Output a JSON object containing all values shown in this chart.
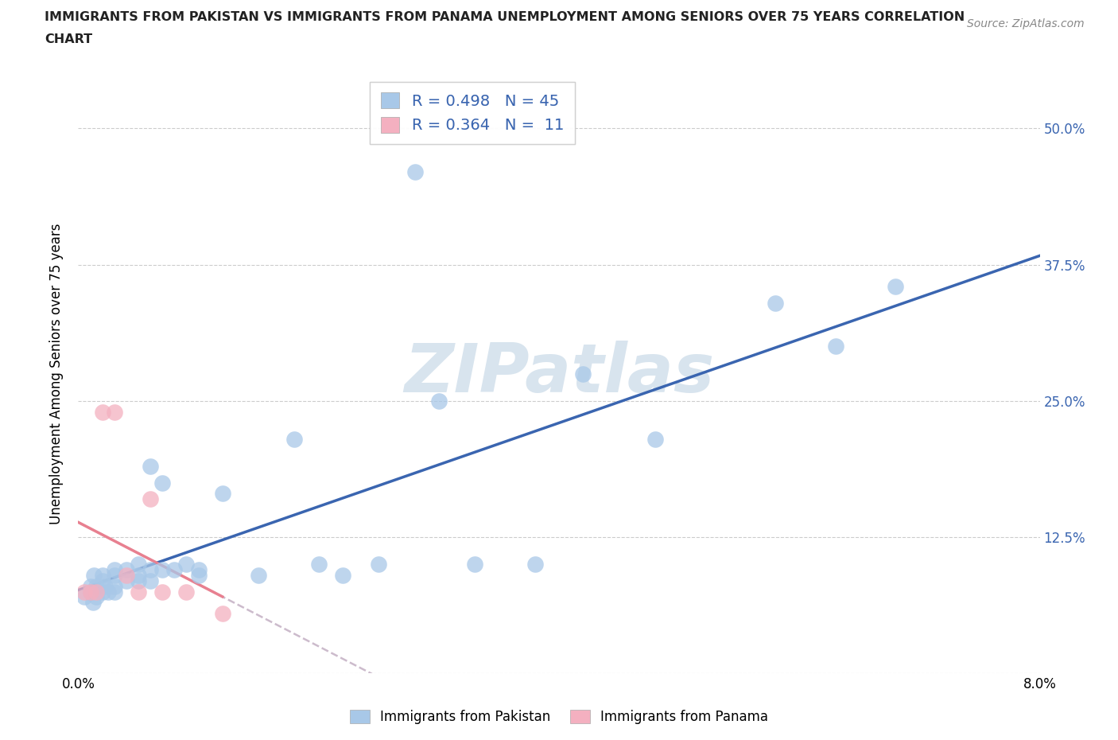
{
  "title_line1": "IMMIGRANTS FROM PAKISTAN VS IMMIGRANTS FROM PANAMA UNEMPLOYMENT AMONG SENIORS OVER 75 YEARS CORRELATION",
  "title_line2": "CHART",
  "source": "Source: ZipAtlas.com",
  "ylabel": "Unemployment Among Seniors over 75 years",
  "xlim": [
    0.0,
    0.08
  ],
  "ylim": [
    0.0,
    0.55
  ],
  "xticks": [
    0.0,
    0.02,
    0.04,
    0.06,
    0.08
  ],
  "xticklabels": [
    "0.0%",
    "",
    "",
    "",
    "8.0%"
  ],
  "yticks": [
    0.0,
    0.125,
    0.25,
    0.375,
    0.5
  ],
  "ytick_right_labels": [
    "",
    "12.5%",
    "25.0%",
    "37.5%",
    "50.0%"
  ],
  "R_pakistan": 0.498,
  "N_pakistan": 45,
  "R_panama": 0.364,
  "N_panama": 11,
  "color_pakistan": "#a8c8e8",
  "color_panama": "#f4b0c0",
  "trendline_pakistan_color": "#3a65b0",
  "trendline_panama_color": "#e88090",
  "trendline_extend_color": "#ccbbcc",
  "grid_color": "#cccccc",
  "watermark_color": "#d8e4ee",
  "pakistan_x": [
    0.0005,
    0.001,
    0.001,
    0.0012,
    0.0013,
    0.0015,
    0.0015,
    0.002,
    0.002,
    0.002,
    0.0022,
    0.0025,
    0.003,
    0.003,
    0.003,
    0.003,
    0.004,
    0.004,
    0.005,
    0.005,
    0.005,
    0.006,
    0.006,
    0.006,
    0.007,
    0.007,
    0.008,
    0.009,
    0.01,
    0.01,
    0.012,
    0.015,
    0.018,
    0.02,
    0.022,
    0.025,
    0.028,
    0.03,
    0.033,
    0.038,
    0.042,
    0.048,
    0.058,
    0.063,
    0.068
  ],
  "pakistan_y": [
    0.07,
    0.075,
    0.08,
    0.065,
    0.09,
    0.07,
    0.08,
    0.075,
    0.085,
    0.09,
    0.08,
    0.075,
    0.075,
    0.08,
    0.09,
    0.095,
    0.085,
    0.095,
    0.085,
    0.09,
    0.1,
    0.085,
    0.095,
    0.19,
    0.095,
    0.175,
    0.095,
    0.1,
    0.095,
    0.09,
    0.165,
    0.09,
    0.215,
    0.1,
    0.09,
    0.1,
    0.46,
    0.25,
    0.1,
    0.1,
    0.275,
    0.215,
    0.34,
    0.3,
    0.355
  ],
  "panama_x": [
    0.0005,
    0.001,
    0.0015,
    0.002,
    0.003,
    0.004,
    0.005,
    0.006,
    0.007,
    0.009,
    0.012
  ],
  "panama_y": [
    0.075,
    0.075,
    0.075,
    0.24,
    0.24,
    0.09,
    0.075,
    0.16,
    0.075,
    0.075,
    0.055
  ]
}
